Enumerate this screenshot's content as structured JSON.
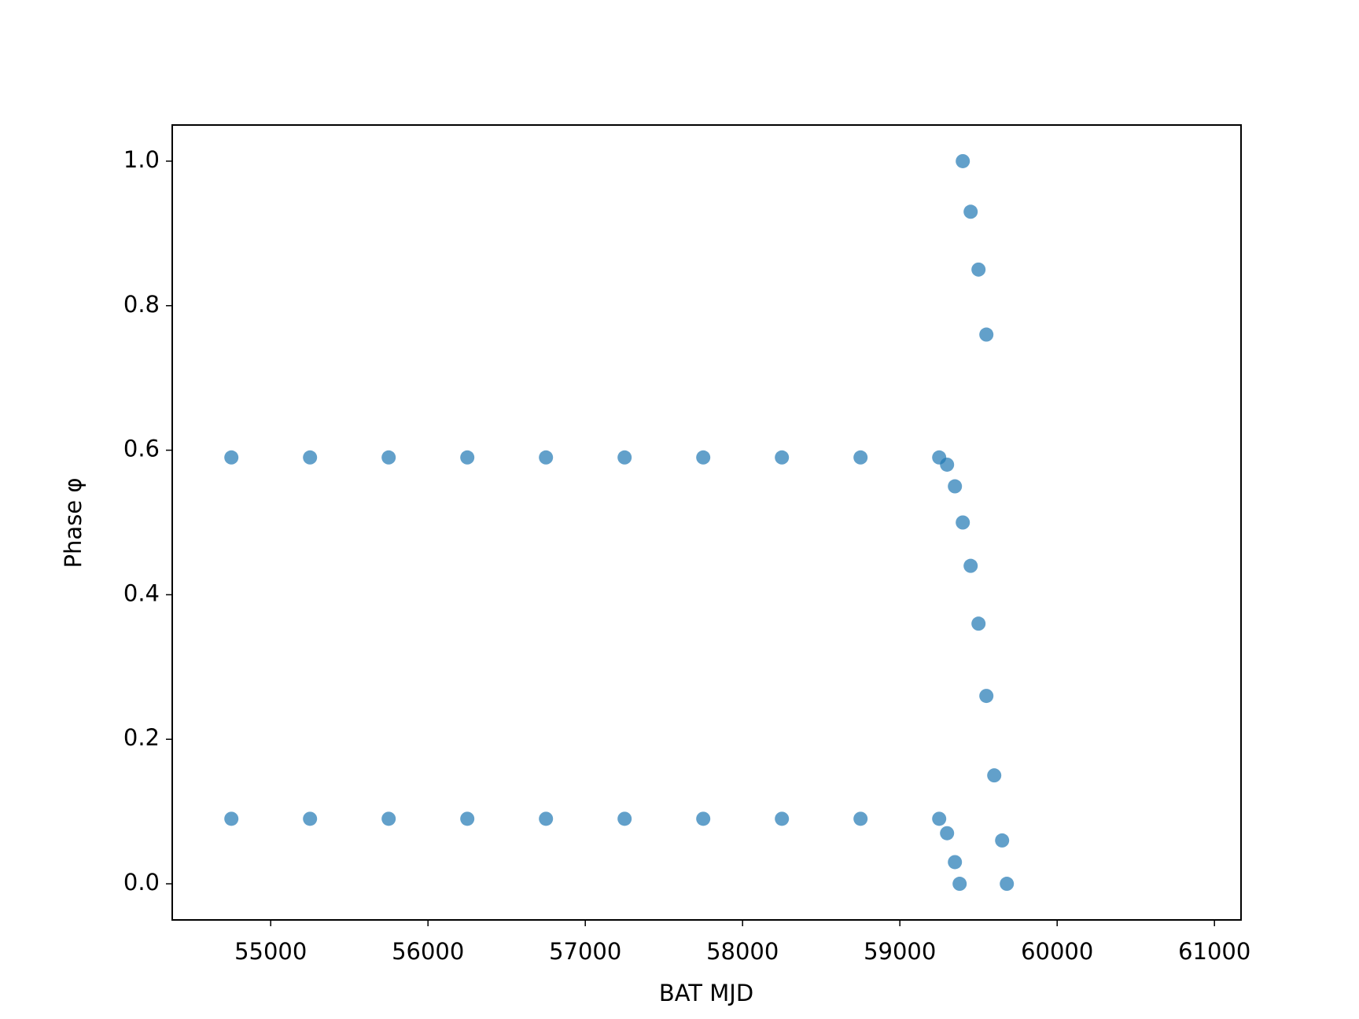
{
  "chart_data": {
    "type": "scatter",
    "xlabel": "BAT MJD",
    "ylabel": "Phase φ",
    "x": [
      54750,
      55250,
      55750,
      56250,
      56750,
      57250,
      57750,
      58250,
      58750,
      59250,
      59300,
      59350,
      59400,
      59450,
      59500,
      59550,
      59600,
      59650,
      59680,
      54750,
      55250,
      55750,
      56250,
      56750,
      57250,
      57750,
      58250,
      58750,
      59250,
      59300,
      59350,
      59380,
      59400,
      59450,
      59500,
      59550
    ],
    "values": [
      0.59,
      0.59,
      0.59,
      0.59,
      0.59,
      0.59,
      0.59,
      0.59,
      0.59,
      0.59,
      0.58,
      0.55,
      0.5,
      0.44,
      0.36,
      0.26,
      0.15,
      0.06,
      0.0,
      0.09,
      0.09,
      0.09,
      0.09,
      0.09,
      0.09,
      0.09,
      0.09,
      0.09,
      0.09,
      0.07,
      0.03,
      0.0,
      1.0,
      0.93,
      0.85,
      0.76
    ],
    "color": "#1f77b4",
    "xlim": [
      54374,
      61169
    ],
    "ylim": [
      -0.05,
      1.05
    ],
    "xticks": [
      55000,
      56000,
      57000,
      58000,
      59000,
      60000,
      61000
    ],
    "yticks": [
      {
        "value": 0,
        "label": "0.0"
      },
      {
        "value": 0.2,
        "label": "0.2"
      },
      {
        "value": 0.4,
        "label": "0.4"
      },
      {
        "value": 0.6,
        "label": "0.6"
      },
      {
        "value": 0.8,
        "label": "0.8"
      },
      {
        "value": 1,
        "label": "1.0"
      }
    ]
  }
}
